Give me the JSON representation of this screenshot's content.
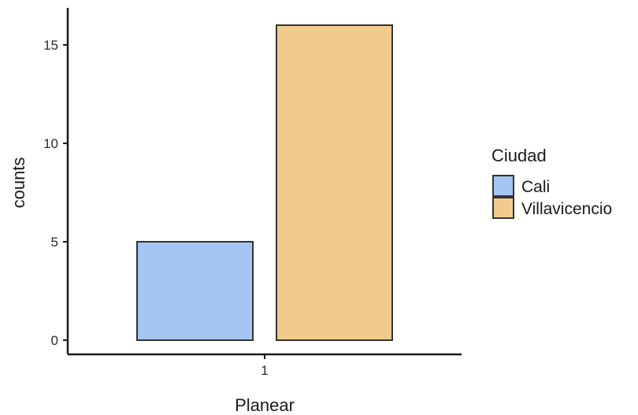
{
  "chart_data": {
    "type": "bar",
    "categories": [
      "1"
    ],
    "series": [
      {
        "name": "Cali",
        "values": [
          5
        ],
        "color": "#a6c5f3"
      },
      {
        "name": "Villavicencio",
        "values": [
          16
        ],
        "color": "#f0cb8d"
      }
    ],
    "xlabel": "Planear",
    "ylabel": "counts",
    "ylim": [
      0,
      16.8
    ],
    "yticks": [
      0,
      5,
      10,
      15
    ],
    "ytick_labels": [
      "0",
      "5",
      "10",
      "15"
    ],
    "legend": {
      "title": "Ciudad",
      "position": "right",
      "entries": [
        "Cali",
        "Villavicencio"
      ]
    },
    "grid": false,
    "bar_stroke": "#333333"
  }
}
